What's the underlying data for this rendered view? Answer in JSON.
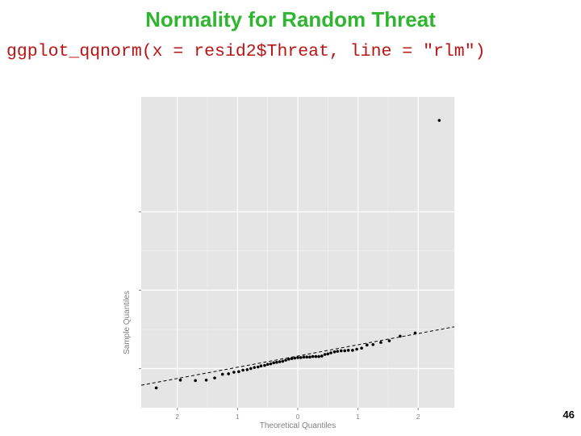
{
  "slide": {
    "title": "Normality for Random Threat",
    "code": "ggplot_qqnorm(x = resid2$Threat, line = \"rlm\")",
    "page_number": "46"
  },
  "colors": {
    "title": "#2fb52f",
    "code": "#b81414",
    "panel_background": "#e5e5e5",
    "gridline": "#ffffff",
    "points": "#000000"
  },
  "chart_data": {
    "type": "scatter",
    "subtype": "qq-plot",
    "xlabel": "Theoretical Quantiles",
    "ylabel": "Sample Quantiles",
    "xlim": [
      -2.6,
      2.6
    ],
    "ylim": [
      -0.75,
      5.2
    ],
    "xticks": [
      -2,
      -1,
      0,
      1,
      2
    ],
    "xtick_labels": [
      "2",
      "1",
      "0",
      "1",
      "2"
    ],
    "yticks": [
      0,
      1.5,
      3
    ],
    "ytick_labels": [
      "",
      "",
      ""
    ],
    "grid": true,
    "reference_line": {
      "style": "dashed",
      "slope": 0.215,
      "intercept": 0.24
    },
    "points": [
      {
        "x": -2.35,
        "y": -0.37
      },
      {
        "x": -1.95,
        "y": -0.22
      },
      {
        "x": -1.7,
        "y": -0.23
      },
      {
        "x": -1.52,
        "y": -0.22
      },
      {
        "x": -1.38,
        "y": -0.18
      },
      {
        "x": -1.25,
        "y": -0.11
      },
      {
        "x": -1.15,
        "y": -0.1
      },
      {
        "x": -1.06,
        "y": -0.07
      },
      {
        "x": -0.98,
        "y": -0.06
      },
      {
        "x": -0.91,
        "y": -0.03
      },
      {
        "x": -0.84,
        "y": -0.02
      },
      {
        "x": -0.78,
        "y": 0.0
      },
      {
        "x": -0.72,
        "y": 0.02
      },
      {
        "x": -0.66,
        "y": 0.03
      },
      {
        "x": -0.61,
        "y": 0.05
      },
      {
        "x": -0.55,
        "y": 0.06
      },
      {
        "x": -0.5,
        "y": 0.08
      },
      {
        "x": -0.45,
        "y": 0.09
      },
      {
        "x": -0.4,
        "y": 0.11
      },
      {
        "x": -0.35,
        "y": 0.12
      },
      {
        "x": -0.3,
        "y": 0.13
      },
      {
        "x": -0.25,
        "y": 0.14
      },
      {
        "x": -0.2,
        "y": 0.16
      },
      {
        "x": -0.15,
        "y": 0.18
      },
      {
        "x": -0.1,
        "y": 0.19
      },
      {
        "x": -0.05,
        "y": 0.2
      },
      {
        "x": 0.0,
        "y": 0.21
      },
      {
        "x": 0.05,
        "y": 0.21
      },
      {
        "x": 0.1,
        "y": 0.22
      },
      {
        "x": 0.15,
        "y": 0.22
      },
      {
        "x": 0.2,
        "y": 0.22
      },
      {
        "x": 0.25,
        "y": 0.23
      },
      {
        "x": 0.3,
        "y": 0.23
      },
      {
        "x": 0.35,
        "y": 0.23
      },
      {
        "x": 0.4,
        "y": 0.24
      },
      {
        "x": 0.45,
        "y": 0.27
      },
      {
        "x": 0.5,
        "y": 0.28
      },
      {
        "x": 0.55,
        "y": 0.3
      },
      {
        "x": 0.61,
        "y": 0.32
      },
      {
        "x": 0.66,
        "y": 0.33
      },
      {
        "x": 0.72,
        "y": 0.34
      },
      {
        "x": 0.78,
        "y": 0.34
      },
      {
        "x": 0.84,
        "y": 0.35
      },
      {
        "x": 0.91,
        "y": 0.35
      },
      {
        "x": 0.98,
        "y": 0.37
      },
      {
        "x": 1.06,
        "y": 0.39
      },
      {
        "x": 1.15,
        "y": 0.45
      },
      {
        "x": 1.25,
        "y": 0.46
      },
      {
        "x": 1.38,
        "y": 0.5
      },
      {
        "x": 1.52,
        "y": 0.53
      },
      {
        "x": 1.7,
        "y": 0.62
      },
      {
        "x": 1.95,
        "y": 0.68
      },
      {
        "x": 2.35,
        "y": 4.75
      }
    ]
  }
}
